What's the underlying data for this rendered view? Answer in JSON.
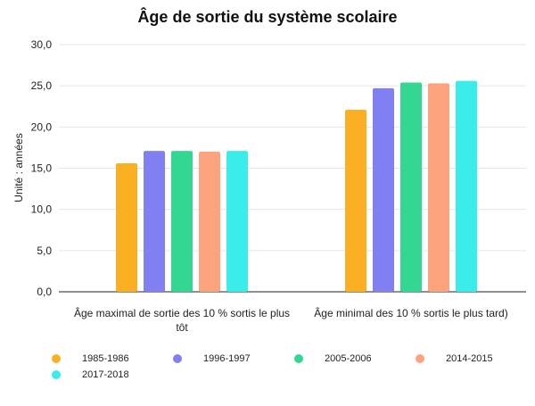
{
  "chart_data": {
    "type": "bar",
    "title": "Âge de sortie du système scolaire",
    "ylabel": "Unité : années",
    "xlabel": "",
    "ylim": [
      0,
      30
    ],
    "yticks": [
      "0,0",
      "5,0",
      "10,0",
      "15,0",
      "20,0",
      "25,0",
      "30,0"
    ],
    "grid": true,
    "legend_position": "bottom",
    "categories": [
      [
        "Âge maximal de sortie des 10 % sortis le plus",
        "tôt"
      ],
      [
        "Âge minimal des 10 % sortis le plus tard)"
      ]
    ],
    "series": [
      {
        "name": "1985-1986",
        "color": "#fbb024",
        "values": [
          15.6,
          22.1
        ]
      },
      {
        "name": "1996-1997",
        "color": "#8180f2",
        "values": [
          17.1,
          24.7
        ]
      },
      {
        "name": "2005-2006",
        "color": "#34d792",
        "values": [
          17.1,
          25.4
        ]
      },
      {
        "name": "2014-2015",
        "color": "#fda37e",
        "values": [
          17.0,
          25.3
        ]
      },
      {
        "name": "2017-2018",
        "color": "#3aedea",
        "values": [
          17.1,
          25.6
        ]
      }
    ]
  }
}
